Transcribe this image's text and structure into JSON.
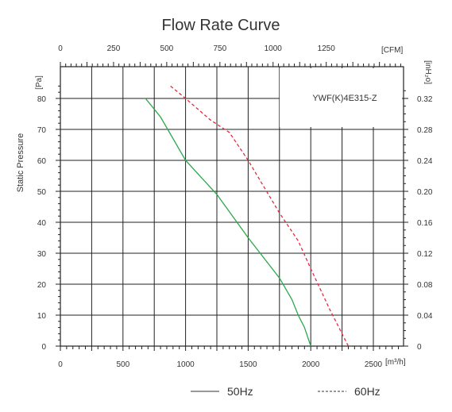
{
  "chart_data": {
    "type": "line",
    "title": "Flow Rate Curve",
    "model_label": "YWF(K)4E315-Z",
    "ylabel": "Static Pressure",
    "x_bottom": {
      "unit": "[m³/h]",
      "range": [
        0,
        2500
      ],
      "ticks": [
        "0",
        "500",
        "1000",
        "1500",
        "2000",
        "2500"
      ]
    },
    "x_top": {
      "unit": "[CFM]",
      "range": [
        0,
        1471.5
      ],
      "ticks": [
        "0",
        "250",
        "500",
        "750",
        "1000",
        "1250"
      ]
    },
    "y_left": {
      "unit": "[Pa]",
      "range": [
        0,
        85
      ],
      "ticks": [
        "0",
        "10",
        "20",
        "30",
        "40",
        "50",
        "60",
        "70",
        "80"
      ]
    },
    "y_right": {
      "unit": "[inH₂o]",
      "range": [
        0,
        0.34
      ],
      "ticks": [
        "0",
        "0.04",
        "0.08",
        "0.12",
        "0.16",
        "0.20",
        "0.24",
        "0.28",
        "0.32"
      ]
    },
    "grid": true,
    "legend_position": "bottom",
    "series": [
      {
        "name": "50Hz",
        "color": "#2aa84a",
        "style": "solid",
        "x": [
          680,
          800,
          1000,
          1250,
          1500,
          1750,
          1850,
          1900,
          1950,
          2000
        ],
        "y": [
          80,
          74,
          60,
          49,
          35,
          22,
          15,
          10,
          6,
          0
        ]
      },
      {
        "name": "60Hz",
        "color": "#e8283c",
        "style": "dashed",
        "x": [
          880,
          1000,
          1200,
          1350,
          1500,
          1750,
          1900,
          2000,
          2150,
          2300
        ],
        "y": [
          84,
          80,
          73,
          69,
          60,
          43,
          34,
          25,
          12,
          0
        ]
      }
    ]
  }
}
